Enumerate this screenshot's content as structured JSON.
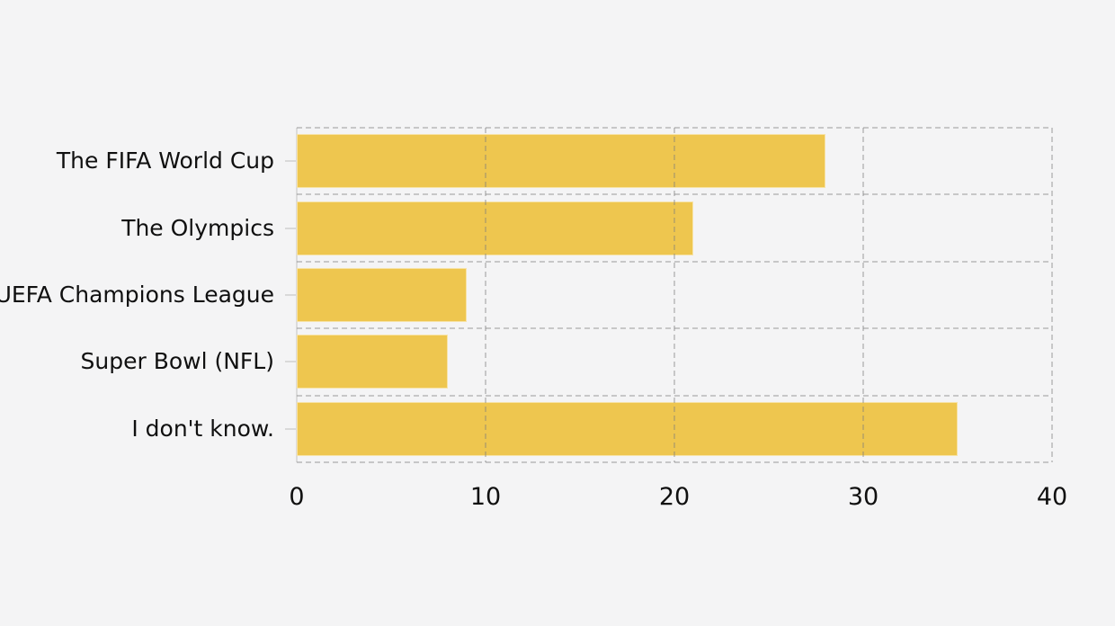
{
  "chart_data": {
    "type": "bar",
    "orientation": "horizontal",
    "title": "",
    "xlabel": "",
    "ylabel": "",
    "categories": [
      "The FIFA World Cup",
      "The Olympics",
      "UEFA Champions League",
      "Super Bowl (NFL)",
      "I don't know."
    ],
    "values": [
      28,
      21,
      9,
      8,
      35
    ],
    "xlim": [
      0,
      40
    ],
    "xticks": [
      0,
      10,
      20,
      30,
      40
    ],
    "grid": "dashed",
    "legend": "none",
    "bar_color": "#EEC64F",
    "background_color": "#F4F4F5",
    "gridline_color": "#C9C9C9",
    "text_color": "#101010"
  }
}
